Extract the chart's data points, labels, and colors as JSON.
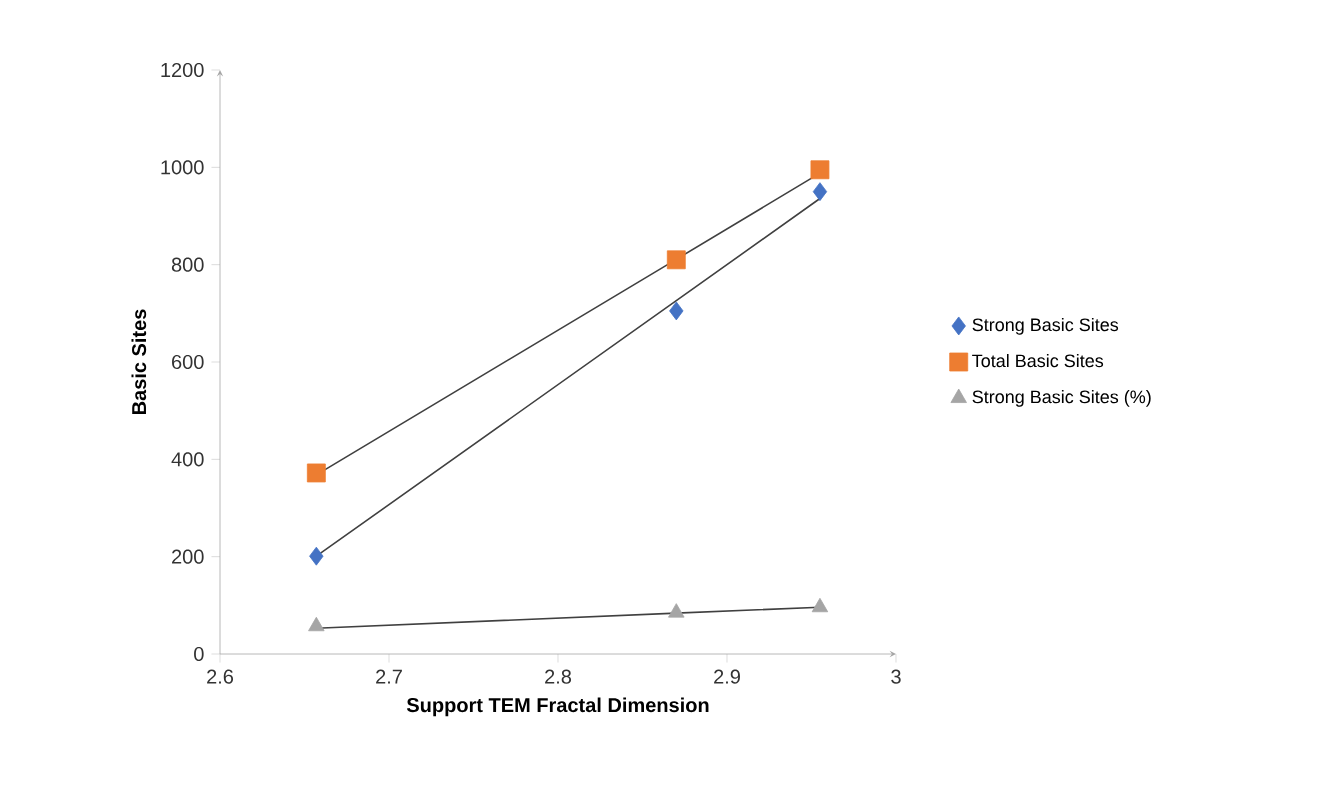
{
  "chart_data": {
    "type": "scatter",
    "xlabel": "Support TEM Fractal Dimension",
    "ylabel": "Basic Sites",
    "x": [
      2.657,
      2.87,
      2.955
    ],
    "series": [
      {
        "name": "Strong Basic Sites",
        "color": "#4472c4",
        "marker": "diamond",
        "values": [
          201,
          705,
          950
        ]
      },
      {
        "name": "Total Basic Sites",
        "color": "#ed7d31",
        "marker": "square",
        "values": [
          372,
          810,
          995
        ]
      },
      {
        "name": "Strong Basic Sites (%)",
        "color": "#a5a5a5",
        "marker": "triangle",
        "values": [
          57,
          85,
          96
        ]
      },
      {
        "type": "line",
        "color": "#404040",
        "values": [
          201,
          726,
          936
        ]
      },
      {
        "type": "line",
        "color": "#404040",
        "values": [
          368,
          811,
          988
        ]
      },
      {
        "type": "line",
        "color": "#404040",
        "values": [
          53,
          84,
          96
        ]
      }
    ],
    "xlim": [
      2.6,
      3
    ],
    "xticks": [
      2.6,
      2.7,
      2.8,
      2.9,
      3
    ],
    "ylim": [
      0,
      1200
    ],
    "yticks": [
      0,
      200,
      400,
      600,
      800,
      1000,
      1200
    ],
    "grid": false,
    "legend": "right"
  }
}
